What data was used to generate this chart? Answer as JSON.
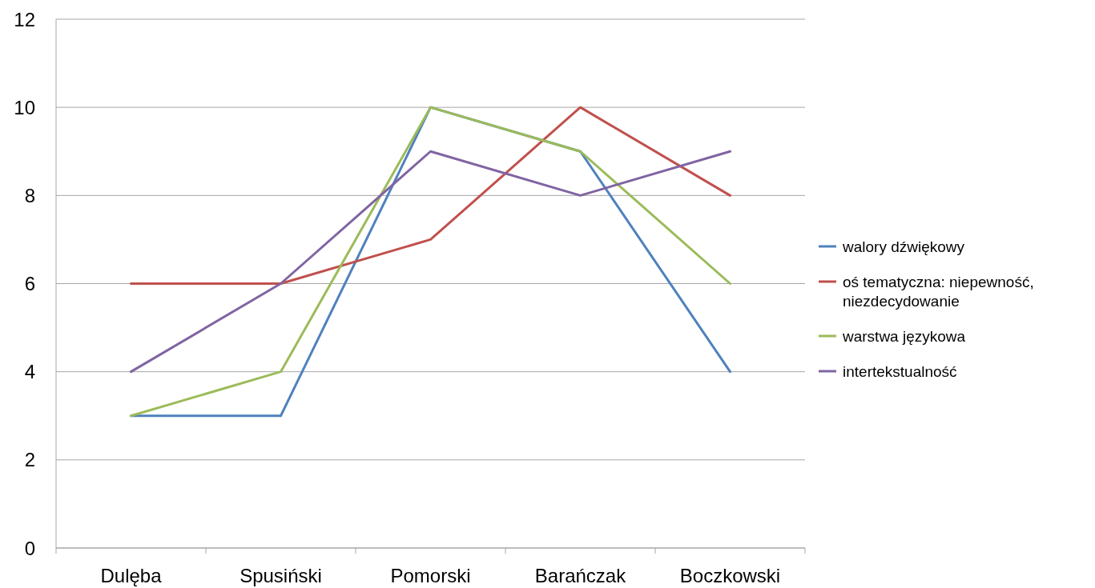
{
  "chart_data": {
    "type": "line",
    "categories": [
      "Dulęba",
      "Spusiński",
      "Pomorski",
      "Barańczak",
      "Boczkowski"
    ],
    "series": [
      {
        "name": "walory dźwiękowy",
        "color": "#4f81bd",
        "values": [
          3,
          3,
          10,
          9,
          4
        ]
      },
      {
        "name": "oś tematyczna: niepewność, niezdecydowanie",
        "color": "#c0504d",
        "values": [
          6,
          6,
          7,
          10,
          8
        ]
      },
      {
        "name": "warstwa językowa",
        "color": "#9bbb59",
        "values": [
          3,
          4,
          10,
          9,
          6
        ]
      },
      {
        "name": "intertekstualność",
        "color": "#8064a2",
        "values": [
          4,
          6,
          9,
          8,
          9
        ]
      }
    ],
    "ylim": [
      0,
      12
    ],
    "yticks": [
      0,
      2,
      4,
      6,
      8,
      10,
      12
    ],
    "grid": "y",
    "legend": "right",
    "marker": "none",
    "line_style": "solid"
  }
}
